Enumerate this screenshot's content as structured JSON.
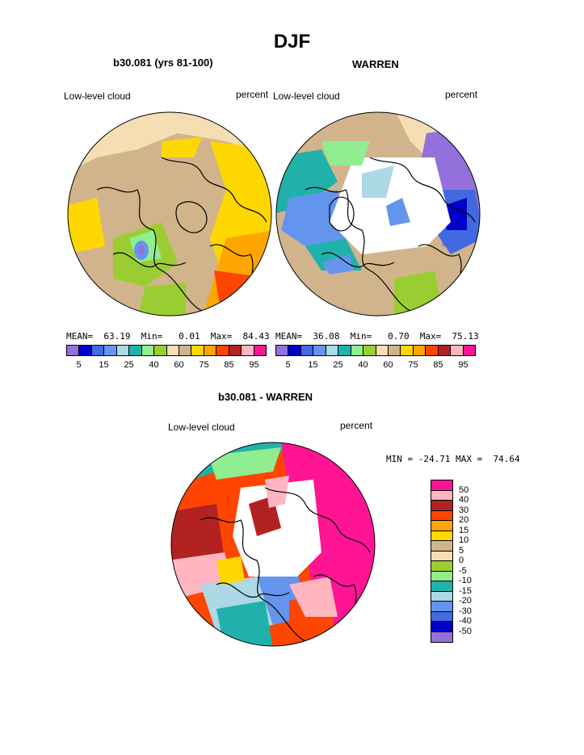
{
  "figure": {
    "title": "DJF",
    "panels": [
      {
        "subtitle": "b30.081 (yrs 81-100)",
        "left_label": "Low-level cloud",
        "right_label": "percent",
        "stats": "MEAN=  63.19  Min=   0.01  Max=  84.43"
      },
      {
        "subtitle": "WARREN",
        "left_label": "Low-level cloud",
        "right_label": "percent",
        "stats": "MEAN=  36.08  Min=   0.70  Max=  75.13"
      },
      {
        "subtitle": "b30.081 - WARREN",
        "left_label": "Low-level cloud",
        "right_label": "percent",
        "stats": "MIN = -24.71 MAX =  74.64"
      }
    ]
  },
  "chart_data": [
    {
      "type": "heatmap",
      "title": "b30.081 (yrs 81-100)",
      "projection": "polar stereographic (north)",
      "variable": "Low-level cloud",
      "units": "percent",
      "summary": {
        "mean": 63.19,
        "min": 0.01,
        "max": 84.43
      },
      "colorbar": {
        "orientation": "horizontal",
        "ticks": [
          "5",
          "15",
          "25",
          "40",
          "60",
          "75",
          "85",
          "95"
        ],
        "colors": [
          "#9370DB",
          "#0000C8",
          "#4169E1",
          "#6495ED",
          "#ADD8E6",
          "#20B2AA",
          "#90EE90",
          "#9ACD32",
          "#F5DEB3",
          "#D2B48C",
          "#FFD700",
          "#FFA500",
          "#FF4500",
          "#B22222",
          "#FFB6C1",
          "#FF1493"
        ]
      }
    },
    {
      "type": "heatmap",
      "title": "WARREN",
      "projection": "polar stereographic (north)",
      "variable": "Low-level cloud",
      "units": "percent",
      "summary": {
        "mean": 36.08,
        "min": 0.7,
        "max": 75.13
      },
      "colorbar": {
        "orientation": "horizontal",
        "ticks": [
          "5",
          "15",
          "25",
          "40",
          "60",
          "75",
          "85",
          "95"
        ],
        "colors": [
          "#9370DB",
          "#0000C8",
          "#4169E1",
          "#6495ED",
          "#ADD8E6",
          "#20B2AA",
          "#90EE90",
          "#9ACD32",
          "#F5DEB3",
          "#D2B48C",
          "#FFD700",
          "#FFA500",
          "#FF4500",
          "#B22222",
          "#FFB6C1",
          "#FF1493"
        ]
      }
    },
    {
      "type": "heatmap",
      "title": "b30.081 - WARREN",
      "projection": "polar stereographic (north)",
      "variable": "Low-level cloud",
      "units": "percent",
      "summary": {
        "min": -24.71,
        "max": 74.64
      },
      "colorbar": {
        "orientation": "vertical",
        "ticks": [
          "50",
          "40",
          "30",
          "20",
          "15",
          "10",
          "5",
          "0",
          "-5",
          "-10",
          "-15",
          "-20",
          "-30",
          "-40",
          "-50"
        ],
        "colors": [
          "#FF1493",
          "#FFB6C1",
          "#B22222",
          "#FF4500",
          "#FFA500",
          "#FFD700",
          "#D2B48C",
          "#F5DEB3",
          "#9ACD32",
          "#90EE90",
          "#20B2AA",
          "#ADD8E6",
          "#6495ED",
          "#4169E1",
          "#0000C8",
          "#9370DB"
        ]
      }
    }
  ]
}
